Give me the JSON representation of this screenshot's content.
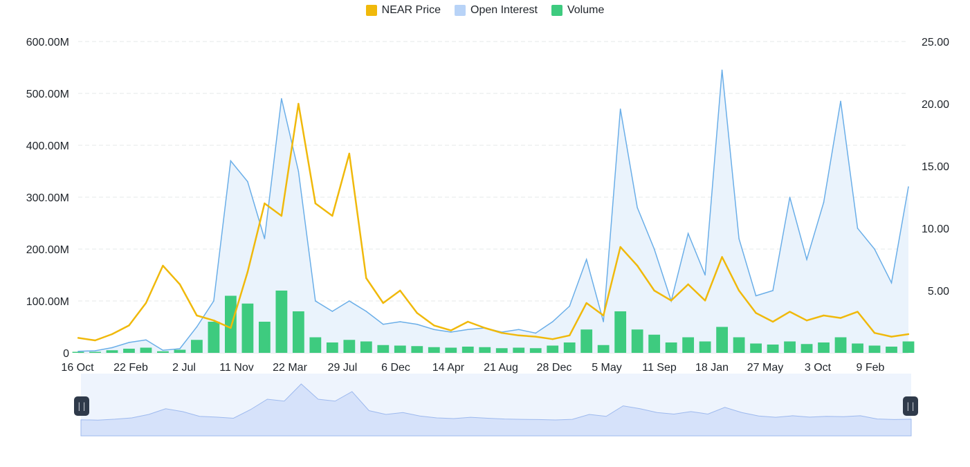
{
  "chart_data": {
    "type": "line",
    "legend": [
      {
        "name": "NEAR Price",
        "color": "#F0B90B"
      },
      {
        "name": "Open Interest",
        "color": "#B8D3F7"
      },
      {
        "name": "Volume",
        "color": "#3ECB7F"
      }
    ],
    "legend_position": "top-center",
    "x_ticks": [
      "16 Oct",
      "22 Feb",
      "2 Jul",
      "11 Nov",
      "22 Mar",
      "29 Jul",
      "6 Dec",
      "14 Apr",
      "21 Aug",
      "28 Dec",
      "5 May",
      "11 Sep",
      "18 Jan",
      "27 May",
      "3 Oct",
      "9 Feb"
    ],
    "y_left_ticks": [
      "600.00M",
      "500.00M",
      "400.00M",
      "300.00M",
      "200.00M",
      "100.00M",
      "0"
    ],
    "y_right_ticks": [
      "25.00",
      "20.00",
      "15.00",
      "10.00",
      "5.00"
    ],
    "y_left_range": [
      0,
      600000000
    ],
    "y_right_range": [
      0,
      25
    ],
    "grid": "horizontal dashed",
    "series": [
      {
        "name": "NEAR Price",
        "axis": "right",
        "values": [
          1.2,
          1.0,
          1.5,
          2.2,
          4.0,
          7.0,
          5.5,
          3.0,
          2.6,
          2.0,
          6.5,
          12.0,
          11.0,
          20.0,
          12.0,
          11.0,
          16.0,
          6.0,
          4.0,
          5.0,
          3.2,
          2.2,
          1.8,
          2.5,
          2.0,
          1.6,
          1.4,
          1.3,
          1.1,
          1.4,
          4.0,
          3.0,
          8.5,
          7.0,
          5.0,
          4.2,
          5.5,
          4.2,
          7.7,
          5.0,
          3.2,
          2.5,
          3.3,
          2.6,
          3.0,
          2.8,
          3.3,
          1.6,
          1.3,
          1.5
        ]
      },
      {
        "name": "Open Interest",
        "axis": "left",
        "values": [
          3000000,
          4000000,
          10000000,
          20000000,
          25000000,
          5000000,
          8000000,
          50000000,
          100000000,
          370000000,
          330000000,
          220000000,
          490000000,
          350000000,
          100000000,
          80000000,
          100000000,
          80000000,
          55000000,
          60000000,
          55000000,
          45000000,
          40000000,
          45000000,
          48000000,
          40000000,
          45000000,
          38000000,
          60000000,
          90000000,
          180000000,
          60000000,
          470000000,
          280000000,
          200000000,
          100000000,
          230000000,
          150000000,
          545000000,
          220000000,
          110000000,
          120000000,
          300000000,
          180000000,
          290000000,
          485000000,
          240000000,
          200000000,
          135000000,
          320000000
        ]
      },
      {
        "name": "Volume",
        "axis": "left",
        "values": [
          2000000,
          2000000,
          5000000,
          8000000,
          10000000,
          3000000,
          6000000,
          25000000,
          60000000,
          110000000,
          95000000,
          60000000,
          120000000,
          80000000,
          30000000,
          20000000,
          25000000,
          22000000,
          15000000,
          14000000,
          13000000,
          11000000,
          10000000,
          12000000,
          11000000,
          9000000,
          10000000,
          9000000,
          14000000,
          20000000,
          45000000,
          15000000,
          80000000,
          45000000,
          35000000,
          20000000,
          30000000,
          22000000,
          50000000,
          30000000,
          18000000,
          16000000,
          22000000,
          17000000,
          20000000,
          30000000,
          18000000,
          14000000,
          12000000,
          22000000
        ]
      }
    ]
  }
}
